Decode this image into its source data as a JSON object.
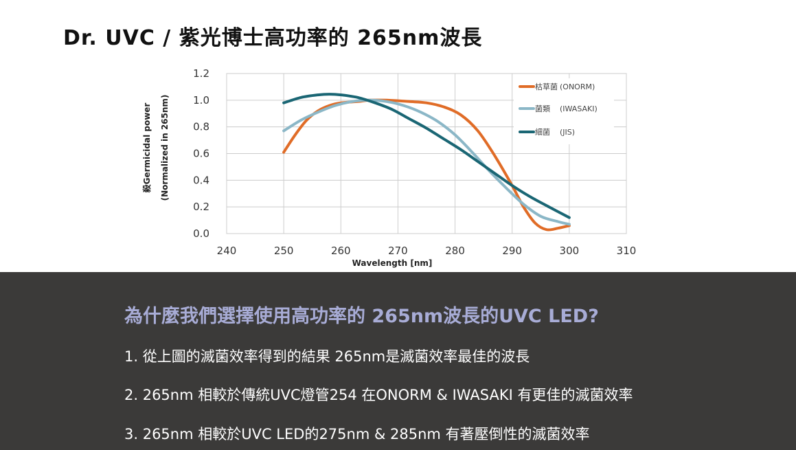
{
  "slide": {
    "title": "Dr. UVC / 紫光博士高功率的 265nm波長",
    "question": "為什麼我們選擇使用高功率的 265nm波長的UVC LED?",
    "points": [
      "1. 從上圖的滅菌效率得到的結果 265nm是滅菌效率最佳的波長",
      "2. 265nm 相較於傳統UVC燈管254 在ONORM & IWASAKI 有更佳的滅菌效率",
      "3. 265nm 相較於UVC LED的275nm & 285nm 有著壓倒性的滅菌效率"
    ]
  },
  "colors": {
    "panel_bg": "#3b3a39",
    "heading": "#a8acd6",
    "grid": "#cccccc"
  },
  "chart_data": {
    "type": "line",
    "xlabel": "Wavelength [nm]",
    "ylabel_line1": "殺Germicidal power",
    "ylabel_line2": "(Normalized in 265nm)",
    "xlim": [
      240,
      310
    ],
    "ylim": [
      0,
      1.2
    ],
    "x_ticks": [
      "240",
      "250",
      "260",
      "270",
      "280",
      "290",
      "300",
      "310"
    ],
    "y_ticks": [
      "0.0",
      "0.2",
      "0.4",
      "0.6",
      "0.8",
      "1.0",
      "1.2"
    ],
    "grid": true,
    "legend_position": "top-right",
    "series": [
      {
        "name": "枯草菌",
        "source": "(ONORM)",
        "color": "#e06c27",
        "x": [
          250,
          252,
          254,
          256,
          258,
          260,
          263,
          265,
          268,
          272,
          275,
          278,
          281,
          284,
          287,
          290,
          292,
          294,
          296,
          298,
          300
        ],
        "y": [
          0.61,
          0.74,
          0.85,
          0.92,
          0.96,
          0.98,
          0.99,
          1.0,
          1.0,
          0.99,
          0.98,
          0.95,
          0.89,
          0.77,
          0.58,
          0.36,
          0.2,
          0.08,
          0.03,
          0.04,
          0.06
        ]
      },
      {
        "name": "菌類",
        "source": "(IWASAKI)",
        "color": "#8bb7c7",
        "x": [
          250,
          253,
          256,
          259,
          262,
          265,
          268,
          271,
          274,
          277,
          280,
          283,
          286,
          289,
          292,
          295,
          298,
          300
        ],
        "y": [
          0.77,
          0.85,
          0.91,
          0.96,
          0.99,
          1.0,
          0.99,
          0.96,
          0.91,
          0.84,
          0.74,
          0.61,
          0.47,
          0.34,
          0.22,
          0.13,
          0.09,
          0.07
        ]
      },
      {
        "name": "細菌",
        "source": "(JIS)",
        "color": "#1a6674",
        "x": [
          250,
          253,
          256,
          258,
          260,
          263,
          266,
          269,
          272,
          275,
          278,
          281,
          284,
          287,
          290,
          293,
          296,
          300
        ],
        "y": [
          0.98,
          1.02,
          1.04,
          1.045,
          1.04,
          1.02,
          0.98,
          0.93,
          0.86,
          0.79,
          0.71,
          0.63,
          0.54,
          0.45,
          0.36,
          0.28,
          0.21,
          0.12
        ]
      }
    ]
  }
}
